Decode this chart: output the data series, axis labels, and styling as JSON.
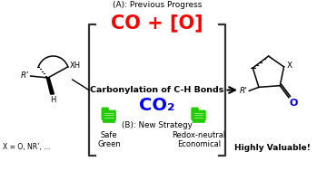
{
  "bg_color": "#ffffff",
  "title_text": "(A): Previous Progress",
  "co_plus_o": "CO + [O]",
  "carbonylation_text": "Carbonylation of C-H Bonds",
  "co2_text": "CO₂",
  "strategy_text": "(B): New Strategy",
  "safe_green_text": "Safe\nGreen",
  "redox_text": "Redox-neutral\nEconomical",
  "highly_text": "Highly Valuable!",
  "xh_label": "XH",
  "r_label": "R’",
  "h_label": "H",
  "x_label": "X = O, NR’, ...",
  "co_color": "#ff0000",
  "co2_color": "#0000ff",
  "green_color": "#22cc00",
  "black": "#000000",
  "bracket_color": "#333333",
  "carbonyl_o_color": "#0000ee",
  "fig_w": 3.49,
  "fig_h": 1.89,
  "dpi": 100
}
